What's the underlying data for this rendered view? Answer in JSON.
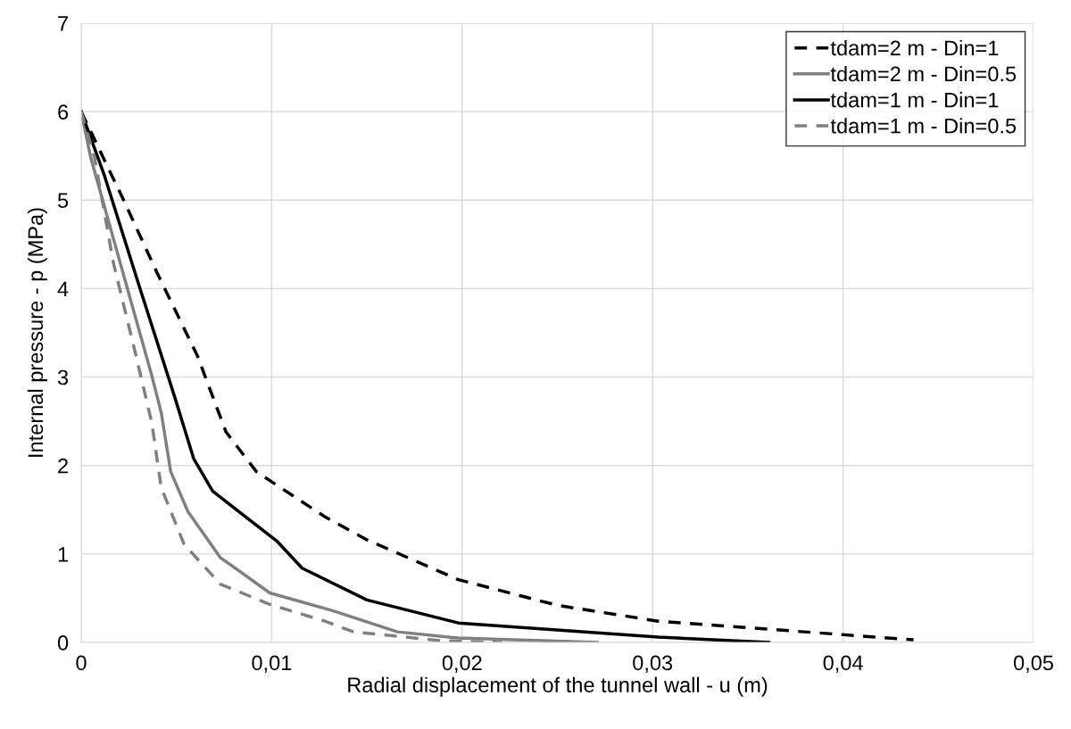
{
  "chart_data": {
    "type": "line",
    "xlabel": "Radial displacement of the tunnel wall - u (m)",
    "ylabel": "Internal pressure - p (MPa)",
    "xlim": [
      0,
      0.05
    ],
    "ylim": [
      0,
      7
    ],
    "xticks": [
      {
        "value": 0,
        "label": "0"
      },
      {
        "value": 0.01,
        "label": "0,01"
      },
      {
        "value": 0.02,
        "label": "0,02"
      },
      {
        "value": 0.03,
        "label": "0,03"
      },
      {
        "value": 0.04,
        "label": "0,04"
      },
      {
        "value": 0.05,
        "label": "0,05"
      }
    ],
    "yticks": [
      0,
      1,
      2,
      3,
      4,
      5,
      6,
      7
    ],
    "grid": true,
    "legend": "top right",
    "marker": "none",
    "series": [
      {
        "name": "tdam=2 m - Din=1",
        "color": "#000000",
        "line_style": "dashed",
        "x": [
          0,
          0.00225,
          0.004,
          0.0061,
          0.0076,
          0.0092,
          0.0128,
          0.015,
          0.0198,
          0.025,
          0.0303,
          0.0437
        ],
        "values": [
          6,
          4.99,
          4.17,
          3.24,
          2.38,
          1.93,
          1.42,
          1.16,
          0.71,
          0.42,
          0.24,
          0.03
        ]
      },
      {
        "name": "tdam=2 m - Din=0.5",
        "color": "#808080",
        "line_style": "solid",
        "x": [
          0,
          0.0005,
          0.0021,
          0.0037,
          0.0042,
          0.0047,
          0.0056,
          0.0073,
          0.0099,
          0.0132,
          0.0166,
          0.0198,
          0.0271
        ],
        "values": [
          6,
          5.48,
          4.25,
          3.02,
          2.6,
          1.93,
          1.48,
          0.96,
          0.56,
          0.36,
          0.12,
          0.05,
          0
        ]
      },
      {
        "name": "tdam=1 m - Din=1",
        "color": "#000000",
        "line_style": "solid",
        "x": [
          0,
          0.0012,
          0.003,
          0.0049,
          0.0059,
          0.0069,
          0.0103,
          0.0116,
          0.015,
          0.0198,
          0.0303,
          0.0361
        ],
        "values": [
          6,
          5.29,
          4.06,
          2.78,
          2.08,
          1.71,
          1.14,
          0.84,
          0.48,
          0.22,
          0.06,
          0
        ]
      },
      {
        "name": "tdam=1 m - Din=0.5",
        "color": "#808080",
        "line_style": "dashed",
        "x": [
          0,
          0.0007,
          0.0017,
          0.0028,
          0.0037,
          0.0042,
          0.0054,
          0.0073,
          0.0099,
          0.0128,
          0.0143,
          0.0189,
          0.0221
        ],
        "values": [
          6,
          5.48,
          4.28,
          3.31,
          2.49,
          1.75,
          1.11,
          0.66,
          0.43,
          0.24,
          0.12,
          0.02,
          0
        ]
      }
    ]
  }
}
